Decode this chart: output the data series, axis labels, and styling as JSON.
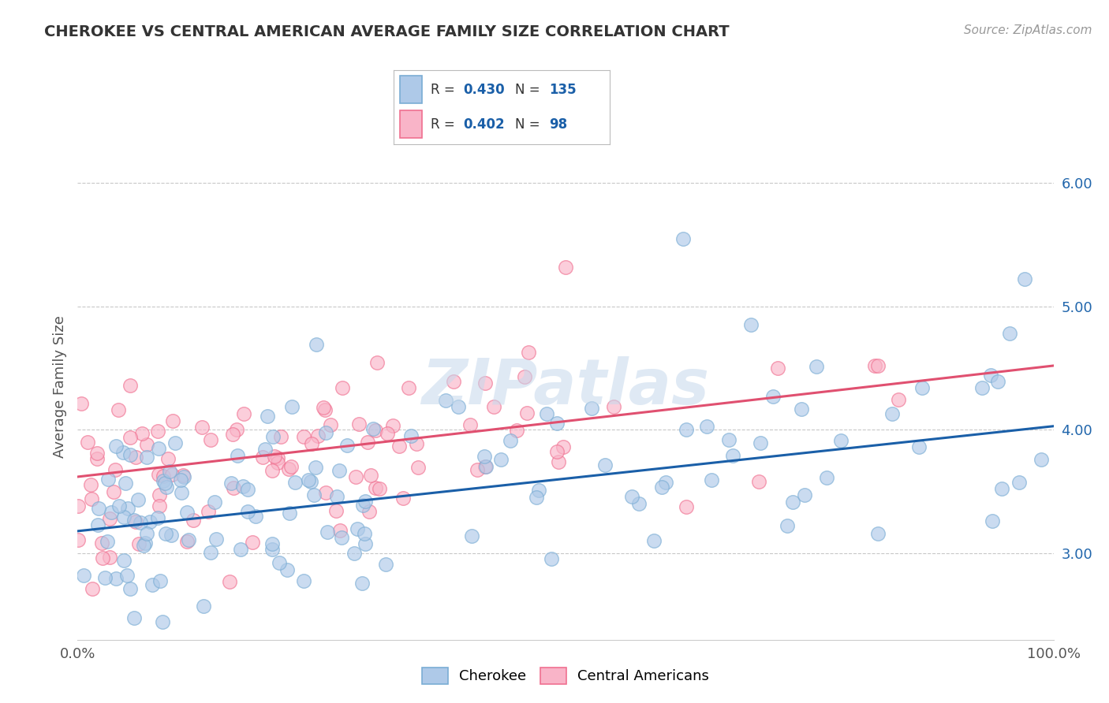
{
  "title": "CHEROKEE VS CENTRAL AMERICAN AVERAGE FAMILY SIZE CORRELATION CHART",
  "source": "Source: ZipAtlas.com",
  "ylabel": "Average Family Size",
  "xlim": [
    0.0,
    1.0
  ],
  "ylim": [
    2.3,
    6.4
  ],
  "yticks": [
    3.0,
    4.0,
    5.0,
    6.0
  ],
  "cherokee_R": 0.43,
  "cherokee_N": 135,
  "central_R": 0.402,
  "central_N": 98,
  "cherokee_dot_fill": "#aec9e8",
  "cherokee_dot_edge": "#7aadd4",
  "central_dot_fill": "#f9b4c8",
  "central_dot_edge": "#f07090",
  "trend_blue": "#1a5fa8",
  "trend_pink": "#e05070",
  "background": "#ffffff",
  "grid_color": "#c8c8c8",
  "watermark": "ZIPatlas",
  "watermark_color": "#c5d8ec",
  "ytick_color": "#2166ac",
  "title_color": "#333333",
  "source_color": "#999999",
  "label_color": "#555555"
}
